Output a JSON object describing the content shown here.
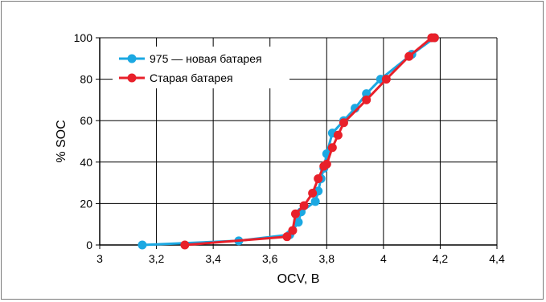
{
  "chart_data": {
    "type": "line",
    "xlabel": "OCV, В",
    "ylabel": "% SOC",
    "xlim": [
      3,
      4.4
    ],
    "ylim": [
      0,
      100
    ],
    "x_ticks": [
      3,
      3.2,
      3.4,
      3.6,
      3.8,
      4,
      4.2,
      4.4
    ],
    "x_tick_labels": [
      "3",
      "3,2",
      "3,4",
      "3,6",
      "3,8",
      "4",
      "4,2",
      "4,4"
    ],
    "y_ticks": [
      0,
      20,
      40,
      60,
      80,
      100
    ],
    "y_tick_labels": [
      "0",
      "20",
      "40",
      "60",
      "80",
      "100"
    ],
    "grid": true,
    "legend_position": "top-left",
    "series": [
      {
        "name": "975 — новая батарея",
        "color": "#1ba8e2",
        "x": [
          3.15,
          3.49,
          3.67,
          3.7,
          3.71,
          3.76,
          3.77,
          3.78,
          3.79,
          3.8,
          3.82,
          3.86,
          3.9,
          3.94,
          3.99,
          4.1,
          4.18
        ],
        "y": [
          0,
          2,
          5,
          11,
          16,
          21,
          26,
          32,
          37,
          44,
          54,
          60,
          66,
          73,
          80,
          92,
          100
        ]
      },
      {
        "name": "Старая батарея",
        "color": "#e8202a",
        "x": [
          3.3,
          3.66,
          3.68,
          3.69,
          3.72,
          3.75,
          3.77,
          3.79,
          3.8,
          3.82,
          3.84,
          3.86,
          3.94,
          4.01,
          4.09,
          4.17,
          4.18
        ],
        "y": [
          0,
          4,
          7,
          15,
          19,
          25,
          32,
          38,
          39,
          47,
          53,
          59,
          70,
          80,
          91,
          100,
          100
        ]
      }
    ]
  }
}
